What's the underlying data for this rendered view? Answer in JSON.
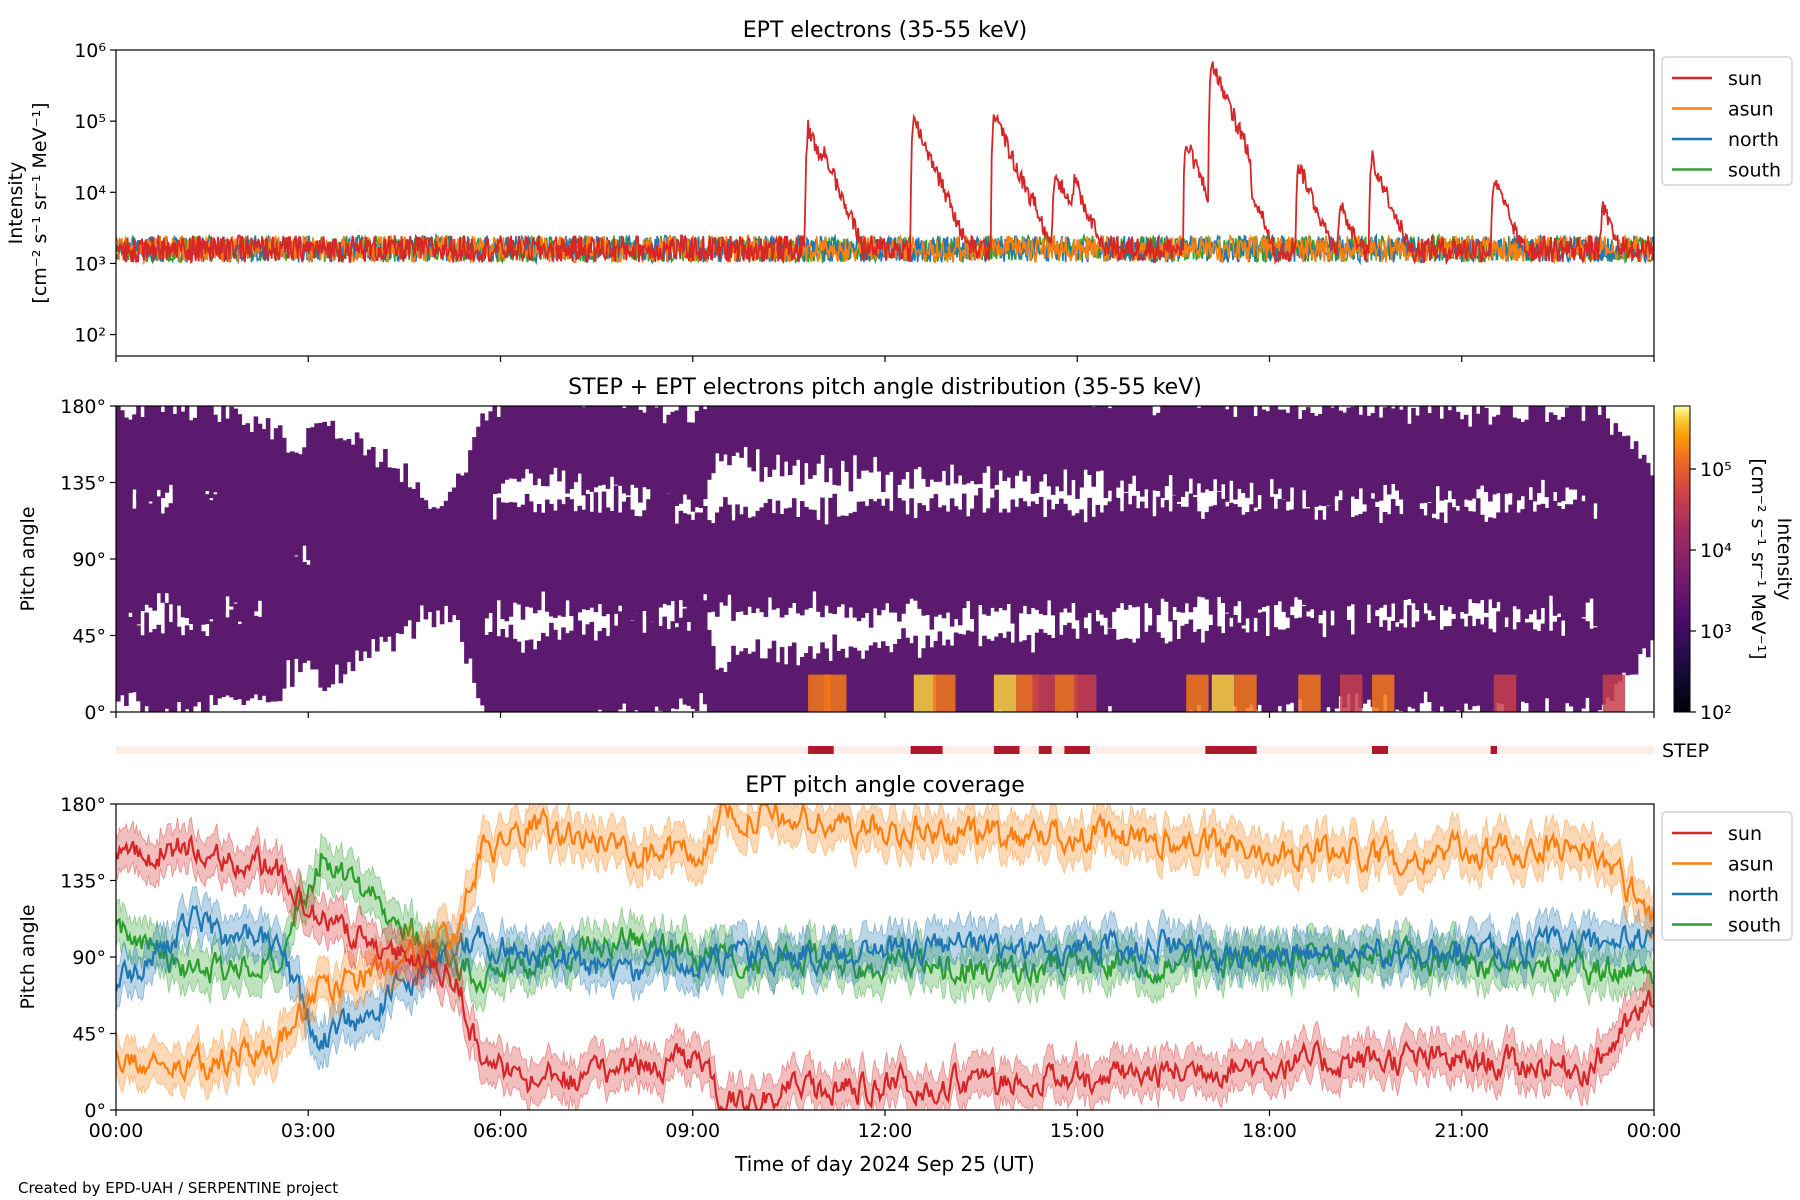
{
  "figure": {
    "footer": "Created by EPD-UAH / SERPENTINE project",
    "xlabel": "Time of day 2024 Sep 25 (UT)",
    "xticks": [
      "00:00",
      "03:00",
      "06:00",
      "09:00",
      "12:00",
      "15:00",
      "18:00",
      "21:00",
      "00:00"
    ],
    "step_label": "STEP",
    "colors": {
      "sun": "#d62728",
      "asun": "#ff7f0e",
      "north": "#1f77b4",
      "south": "#2ca02c"
    }
  },
  "chart_data": [
    {
      "type": "line",
      "title": "EPT electrons (35-55 keV)",
      "ylabel": "Intensity",
      "ylabel_units": "[cm⁻² s⁻¹ sr⁻¹ MeV⁻¹]",
      "yscale": "log",
      "ylim": [
        50,
        1000000
      ],
      "yticks": [
        "10²",
        "10³",
        "10⁴",
        "10⁵",
        "10⁶"
      ],
      "xlim_hours": [
        0,
        24
      ],
      "legend": [
        "sun",
        "asun",
        "north",
        "south"
      ],
      "legend_position": "outside-right-top",
      "background": 1600,
      "sun_peaks": [
        {
          "t": 10.8,
          "v": 80000
        },
        {
          "t": 11.05,
          "v": 35000
        },
        {
          "t": 12.45,
          "v": 110000
        },
        {
          "t": 12.75,
          "v": 25000
        },
        {
          "t": 13.7,
          "v": 130000
        },
        {
          "t": 14.05,
          "v": 20000
        },
        {
          "t": 14.3,
          "v": 8000
        },
        {
          "t": 14.65,
          "v": 20000
        },
        {
          "t": 14.95,
          "v": 15000
        },
        {
          "t": 16.7,
          "v": 50000
        },
        {
          "t": 17.1,
          "v": 650000
        },
        {
          "t": 17.45,
          "v": 40000
        },
        {
          "t": 18.45,
          "v": 25000
        },
        {
          "t": 19.1,
          "v": 7000
        },
        {
          "t": 19.6,
          "v": 30000
        },
        {
          "t": 21.5,
          "v": 15000
        },
        {
          "t": 23.2,
          "v": 6000
        }
      ]
    },
    {
      "type": "heatmap",
      "title": "STEP + EPT electrons pitch angle distribution (35-55 keV)",
      "ylabel": "Pitch angle",
      "yticks": [
        "0°",
        "45°",
        "90°",
        "135°",
        "180°"
      ],
      "ylim": [
        0,
        180
      ],
      "colorbar_label": "Intensity",
      "colorbar_units": "[cm⁻² s⁻¹ sr⁻¹ MeV⁻¹]",
      "colorbar_ticks": [
        "10²",
        "10³",
        "10⁴",
        "10⁵"
      ],
      "colorbar_range": [
        100,
        600000
      ],
      "colormap": "inferno",
      "step_intervals_hours": [
        [
          10.8,
          11.2
        ],
        [
          12.4,
          12.9
        ],
        [
          13.7,
          14.1
        ],
        [
          14.4,
          14.6
        ],
        [
          14.8,
          15.2
        ],
        [
          17.0,
          17.8
        ],
        [
          19.6,
          19.85
        ],
        [
          21.45,
          21.55
        ]
      ]
    },
    {
      "type": "line",
      "title": "EPT pitch angle coverage",
      "ylabel": "Pitch angle",
      "yticks": [
        "0°",
        "45°",
        "90°",
        "135°",
        "180°"
      ],
      "ylim": [
        0,
        180
      ],
      "legend": [
        "sun",
        "asun",
        "north",
        "south"
      ],
      "legend_position": "outside-right-top",
      "series_profile": {
        "sun": [
          [
            0,
            150
          ],
          [
            1.2,
            155
          ],
          [
            2.5,
            140
          ],
          [
            3.2,
            110
          ],
          [
            5.3,
            80
          ],
          [
            5.7,
            30
          ],
          [
            6.5,
            15
          ],
          [
            8,
            25
          ],
          [
            9.2,
            30
          ],
          [
            9.4,
            5
          ],
          [
            12,
            15
          ],
          [
            16,
            20
          ],
          [
            17,
            25
          ],
          [
            20,
            30
          ],
          [
            23,
            25
          ],
          [
            24,
            65
          ]
        ],
        "asun": [
          [
            0,
            30
          ],
          [
            1.2,
            25
          ],
          [
            2.5,
            40
          ],
          [
            3.2,
            70
          ],
          [
            5.3,
            100
          ],
          [
            5.7,
            150
          ],
          [
            6.5,
            165
          ],
          [
            8,
            155
          ],
          [
            9.2,
            150
          ],
          [
            9.4,
            175
          ],
          [
            12,
            165
          ],
          [
            16,
            160
          ],
          [
            17,
            155
          ],
          [
            20,
            150
          ],
          [
            23,
            155
          ],
          [
            24,
            115
          ]
        ],
        "north": [
          [
            0,
            75
          ],
          [
            1.2,
            110
          ],
          [
            2.5,
            95
          ],
          [
            3.2,
            40
          ],
          [
            5.3,
            95
          ],
          [
            5.7,
            100
          ],
          [
            8,
            80
          ],
          [
            9.4,
            90
          ],
          [
            12,
            95
          ],
          [
            16,
            95
          ],
          [
            20,
            90
          ],
          [
            24,
            100
          ]
        ],
        "south": [
          [
            0,
            110
          ],
          [
            1.2,
            80
          ],
          [
            2.5,
            90
          ],
          [
            3.2,
            150
          ],
          [
            5.3,
            85
          ],
          [
            5.7,
            80
          ],
          [
            8,
            100
          ],
          [
            9.4,
            90
          ],
          [
            12,
            85
          ],
          [
            16,
            85
          ],
          [
            20,
            90
          ],
          [
            24,
            80
          ]
        ]
      },
      "band_halfwidth_deg": 12
    }
  ]
}
